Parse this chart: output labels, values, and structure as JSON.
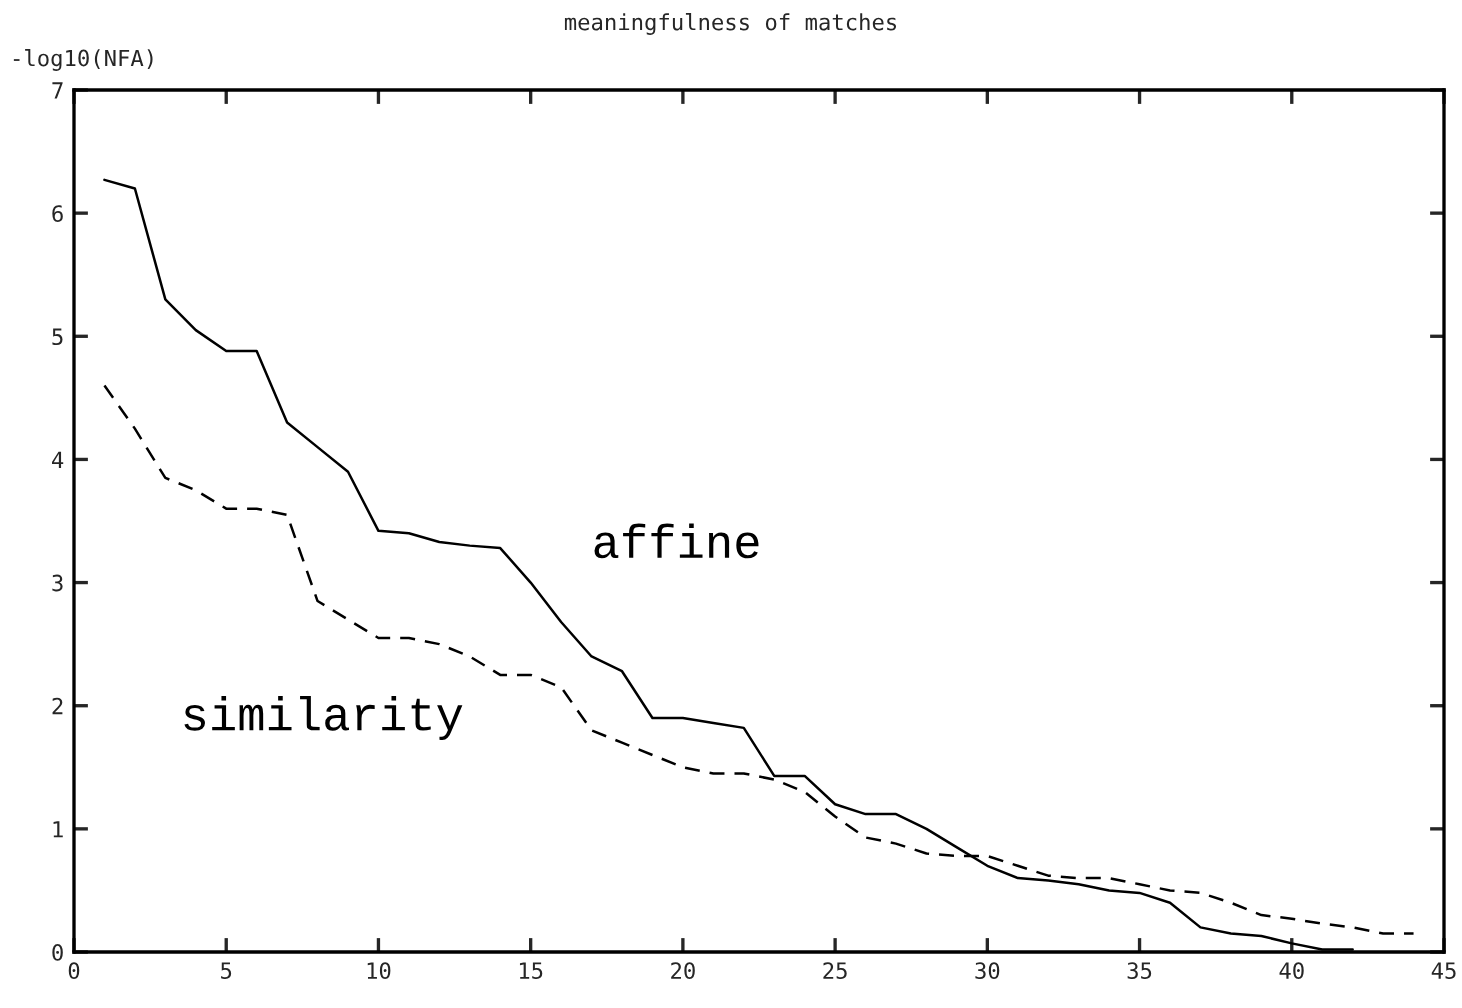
{
  "chart_data": {
    "type": "line",
    "title": "meaningfulness of matches",
    "ylabel": "-log10(NFA)",
    "xlim": [
      0,
      45
    ],
    "xticks": [
      0,
      5,
      10,
      15,
      20,
      25,
      30,
      35,
      40,
      45
    ],
    "ylim": [
      0,
      7
    ],
    "yticks": [
      0,
      1,
      2,
      3,
      4,
      5,
      6,
      7
    ],
    "grid": false,
    "legend": false,
    "series": [
      {
        "name": "affine",
        "color": "#000000",
        "line_style": "solid",
        "x": [
          1,
          2,
          3,
          4,
          5,
          6,
          7,
          8,
          9,
          10,
          11,
          12,
          13,
          14,
          15,
          16,
          17,
          18,
          19,
          20,
          21,
          22,
          23,
          24,
          25,
          26,
          27,
          28,
          29,
          30,
          31,
          32,
          33,
          34,
          35,
          36,
          37,
          38,
          39,
          40,
          41,
          42
        ],
        "values": [
          6.27,
          6.2,
          5.3,
          5.05,
          4.88,
          4.88,
          4.3,
          4.1,
          3.9,
          3.42,
          3.4,
          3.33,
          3.3,
          3.28,
          3.0,
          2.68,
          2.4,
          2.28,
          1.9,
          1.9,
          1.86,
          1.82,
          1.43,
          1.43,
          1.2,
          1.12,
          1.12,
          1.0,
          0.85,
          0.7,
          0.6,
          0.58,
          0.55,
          0.5,
          0.48,
          0.4,
          0.2,
          0.15,
          0.13,
          0.07,
          0.02,
          0.02
        ]
      },
      {
        "name": "similarity",
        "color": "#000000",
        "line_style": "dashed",
        "x": [
          1,
          2,
          3,
          4,
          5,
          6,
          7,
          8,
          9,
          10,
          11,
          12,
          13,
          14,
          15,
          16,
          17,
          18,
          19,
          20,
          21,
          22,
          23,
          24,
          25,
          26,
          27,
          28,
          29,
          30,
          31,
          32,
          33,
          34,
          35,
          36,
          37,
          38,
          39,
          40,
          41,
          42,
          43,
          44
        ],
        "values": [
          4.6,
          4.25,
          3.85,
          3.75,
          3.6,
          3.6,
          3.55,
          2.85,
          2.7,
          2.55,
          2.55,
          2.5,
          2.4,
          2.25,
          2.25,
          2.15,
          1.8,
          1.7,
          1.6,
          1.5,
          1.45,
          1.45,
          1.4,
          1.3,
          1.1,
          0.93,
          0.88,
          0.8,
          0.78,
          0.78,
          0.7,
          0.62,
          0.6,
          0.6,
          0.55,
          0.5,
          0.48,
          0.4,
          0.3,
          0.27,
          0.23,
          0.2,
          0.15,
          0.15
        ]
      }
    ]
  }
}
